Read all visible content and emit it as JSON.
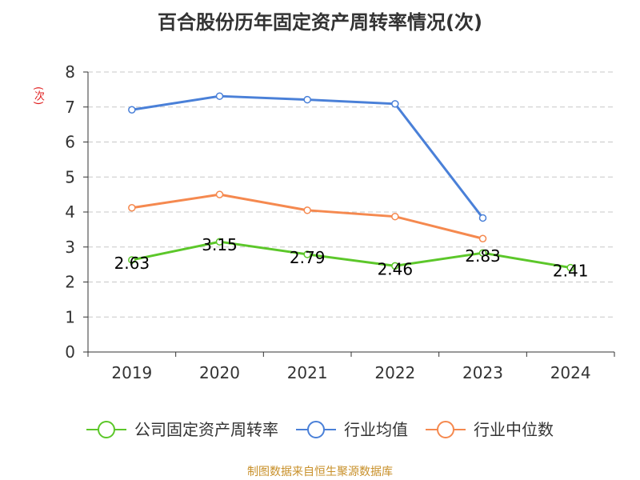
{
  "chart_data": {
    "type": "line",
    "title": "百合股份历年固定资产周转率情况(次)",
    "ylabel": "(次)",
    "xlabel": "",
    "categories": [
      "2019",
      "2020",
      "2021",
      "2022",
      "2023",
      "2024"
    ],
    "ylim": [
      0,
      8
    ],
    "yticks": [
      "0",
      "1",
      "2",
      "3",
      "4",
      "5",
      "6",
      "7",
      "8"
    ],
    "grid": true,
    "legend_position": "bottom",
    "series": [
      {
        "name": "公司固定资产周转率",
        "color": "#5cc72a",
        "values": [
          2.63,
          3.15,
          2.79,
          2.46,
          2.83,
          2.41
        ],
        "labels": [
          "2.63",
          "3.15",
          "2.79",
          "2.46",
          "2.83",
          "2.41"
        ]
      },
      {
        "name": "行业均值",
        "color": "#4a80d8",
        "values": [
          6.92,
          7.31,
          7.21,
          7.09,
          3.83,
          null
        ]
      },
      {
        "name": "行业中位数",
        "color": "#f5894f",
        "values": [
          4.12,
          4.5,
          4.05,
          3.87,
          3.24,
          null
        ]
      }
    ]
  },
  "footer": {
    "source": "制图数据来自恒生聚源数据库"
  }
}
